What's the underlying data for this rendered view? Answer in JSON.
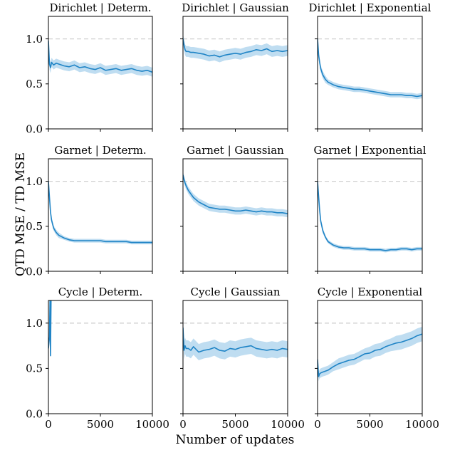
{
  "figure": {
    "ylabel": "QTD MSE / TD MSE",
    "xlabel": "Number of updates"
  },
  "colors": {
    "line": "#1f84c6",
    "band": "#aad2ec",
    "reference": "#cfcfcf"
  },
  "chart_data": {
    "type": "line",
    "layout": "3x3 grid",
    "shared_axes": true,
    "xlim": [
      0,
      10000
    ],
    "ylim": [
      0,
      1.25
    ],
    "x_ticks": [
      0,
      5000,
      10000
    ],
    "y_ticks": [
      0.0,
      0.5,
      1.0
    ],
    "x_tick_labels": [
      "0",
      "5000",
      "10000"
    ],
    "y_tick_labels": [
      "0.0",
      "0.5",
      "1.0"
    ],
    "reference_line": 1.0,
    "reference_style": "dashed grey",
    "grid": false,
    "shaded_band": true,
    "panels": [
      {
        "title": "Dirichlet | Determ.",
        "x": [
          0,
          100,
          200,
          300,
          500,
          750,
          1000,
          1500,
          2000,
          2500,
          3000,
          3500,
          4000,
          4500,
          5000,
          5500,
          6000,
          6500,
          7000,
          7500,
          8000,
          8500,
          9000,
          9500,
          10000
        ],
        "y": [
          0.98,
          0.72,
          0.68,
          0.74,
          0.71,
          0.73,
          0.72,
          0.7,
          0.69,
          0.71,
          0.68,
          0.69,
          0.67,
          0.66,
          0.68,
          0.65,
          0.66,
          0.67,
          0.65,
          0.66,
          0.67,
          0.65,
          0.64,
          0.65,
          0.63
        ],
        "band": [
          0.06,
          0.06,
          0.06,
          0.05,
          0.05,
          0.05,
          0.05,
          0.05,
          0.05,
          0.05,
          0.05,
          0.05,
          0.05,
          0.05,
          0.05,
          0.05,
          0.05,
          0.05,
          0.05,
          0.05,
          0.05,
          0.05,
          0.05,
          0.05,
          0.05
        ]
      },
      {
        "title": "Dirichlet | Gaussian",
        "x": [
          0,
          100,
          200,
          300,
          500,
          750,
          1000,
          1500,
          2000,
          2500,
          3000,
          3500,
          4000,
          4500,
          5000,
          5500,
          6000,
          6500,
          7000,
          7500,
          8000,
          8500,
          9000,
          9500,
          10000
        ],
        "y": [
          1.0,
          0.93,
          0.88,
          0.86,
          0.86,
          0.85,
          0.85,
          0.84,
          0.83,
          0.81,
          0.82,
          0.8,
          0.82,
          0.83,
          0.84,
          0.83,
          0.85,
          0.86,
          0.88,
          0.87,
          0.89,
          0.86,
          0.87,
          0.86,
          0.87
        ],
        "band": [
          0.06,
          0.06,
          0.06,
          0.06,
          0.06,
          0.06,
          0.06,
          0.06,
          0.06,
          0.06,
          0.06,
          0.06,
          0.06,
          0.06,
          0.06,
          0.06,
          0.06,
          0.06,
          0.06,
          0.06,
          0.06,
          0.06,
          0.06,
          0.06,
          0.06
        ]
      },
      {
        "title": "Dirichlet | Exponential",
        "x": [
          0,
          100,
          200,
          300,
          500,
          750,
          1000,
          1500,
          2000,
          2500,
          3000,
          3500,
          4000,
          4500,
          5000,
          5500,
          6000,
          6500,
          7000,
          7500,
          8000,
          8500,
          9000,
          9500,
          10000
        ],
        "y": [
          1.0,
          0.82,
          0.74,
          0.67,
          0.6,
          0.55,
          0.52,
          0.49,
          0.47,
          0.46,
          0.45,
          0.44,
          0.44,
          0.43,
          0.42,
          0.41,
          0.4,
          0.39,
          0.38,
          0.38,
          0.38,
          0.37,
          0.37,
          0.36,
          0.37
        ],
        "band": [
          0.04,
          0.04,
          0.04,
          0.04,
          0.04,
          0.04,
          0.03,
          0.03,
          0.03,
          0.03,
          0.03,
          0.03,
          0.03,
          0.03,
          0.03,
          0.03,
          0.03,
          0.03,
          0.03,
          0.03,
          0.03,
          0.03,
          0.03,
          0.03,
          0.03
        ]
      },
      {
        "title": "Garnet | Determ.",
        "x": [
          0,
          100,
          200,
          300,
          500,
          750,
          1000,
          1500,
          2000,
          2500,
          3000,
          3500,
          4000,
          4500,
          5000,
          5500,
          6000,
          6500,
          7000,
          7500,
          8000,
          8500,
          9000,
          9500,
          10000
        ],
        "y": [
          1.0,
          0.82,
          0.66,
          0.57,
          0.48,
          0.43,
          0.4,
          0.37,
          0.35,
          0.34,
          0.34,
          0.34,
          0.34,
          0.34,
          0.34,
          0.33,
          0.33,
          0.33,
          0.33,
          0.33,
          0.32,
          0.32,
          0.32,
          0.32,
          0.32
        ],
        "band": [
          0.04,
          0.04,
          0.04,
          0.03,
          0.03,
          0.03,
          0.03,
          0.02,
          0.02,
          0.02,
          0.02,
          0.02,
          0.02,
          0.02,
          0.02,
          0.02,
          0.02,
          0.02,
          0.02,
          0.02,
          0.02,
          0.02,
          0.02,
          0.02,
          0.02
        ]
      },
      {
        "title": "Garnet | Gaussian",
        "x": [
          0,
          100,
          200,
          300,
          500,
          750,
          1000,
          1500,
          2000,
          2500,
          3000,
          3500,
          4000,
          4500,
          5000,
          5500,
          6000,
          6500,
          7000,
          7500,
          8000,
          8500,
          9000,
          9500,
          10000
        ],
        "y": [
          1.07,
          1.02,
          0.98,
          0.95,
          0.9,
          0.86,
          0.82,
          0.77,
          0.74,
          0.71,
          0.7,
          0.69,
          0.69,
          0.68,
          0.67,
          0.67,
          0.68,
          0.67,
          0.66,
          0.67,
          0.66,
          0.66,
          0.65,
          0.65,
          0.64
        ],
        "band": [
          0.04,
          0.04,
          0.04,
          0.04,
          0.04,
          0.04,
          0.04,
          0.04,
          0.04,
          0.04,
          0.04,
          0.04,
          0.04,
          0.04,
          0.04,
          0.04,
          0.04,
          0.04,
          0.04,
          0.04,
          0.04,
          0.04,
          0.04,
          0.04,
          0.04
        ]
      },
      {
        "title": "Garnet | Exponential",
        "x": [
          0,
          100,
          200,
          300,
          500,
          750,
          1000,
          1500,
          2000,
          2500,
          3000,
          3500,
          4000,
          4500,
          5000,
          5500,
          6000,
          6500,
          7000,
          7500,
          8000,
          8500,
          9000,
          9500,
          10000
        ],
        "y": [
          1.0,
          0.83,
          0.68,
          0.56,
          0.45,
          0.38,
          0.33,
          0.29,
          0.27,
          0.26,
          0.26,
          0.25,
          0.25,
          0.25,
          0.24,
          0.24,
          0.24,
          0.23,
          0.24,
          0.24,
          0.25,
          0.25,
          0.24,
          0.25,
          0.25
        ],
        "band": [
          0.04,
          0.04,
          0.03,
          0.03,
          0.03,
          0.02,
          0.02,
          0.02,
          0.02,
          0.02,
          0.02,
          0.02,
          0.02,
          0.02,
          0.02,
          0.02,
          0.02,
          0.02,
          0.02,
          0.02,
          0.02,
          0.02,
          0.02,
          0.02,
          0.02
        ]
      },
      {
        "title": "Cycle | Determ.",
        "x": [
          0,
          100,
          150,
          200,
          250,
          300
        ],
        "y": [
          0.72,
          0.85,
          1.25,
          0.64,
          1.25,
          1.25
        ],
        "band": [
          0.0,
          0.0,
          0.0,
          0.0,
          0.0,
          0.0
        ]
      },
      {
        "title": "Cycle | Gaussian",
        "x": [
          0,
          100,
          200,
          300,
          500,
          750,
          1000,
          1500,
          2000,
          2500,
          3000,
          3500,
          4000,
          4500,
          5000,
          5500,
          6000,
          6500,
          7000,
          7500,
          8000,
          8500,
          9000,
          9500,
          10000
        ],
        "y": [
          0.95,
          0.7,
          0.75,
          0.72,
          0.72,
          0.7,
          0.74,
          0.68,
          0.7,
          0.71,
          0.73,
          0.7,
          0.69,
          0.72,
          0.71,
          0.73,
          0.74,
          0.75,
          0.72,
          0.71,
          0.7,
          0.71,
          0.7,
          0.72,
          0.71
        ],
        "band": [
          0.1,
          0.1,
          0.09,
          0.09,
          0.09,
          0.09,
          0.09,
          0.09,
          0.09,
          0.09,
          0.09,
          0.09,
          0.09,
          0.09,
          0.09,
          0.09,
          0.09,
          0.09,
          0.09,
          0.09,
          0.09,
          0.09,
          0.09,
          0.09,
          0.09
        ]
      },
      {
        "title": "Cycle | Exponential",
        "x": [
          0,
          100,
          200,
          300,
          500,
          750,
          1000,
          1500,
          2000,
          2500,
          3000,
          3500,
          4000,
          4500,
          5000,
          5500,
          6000,
          6500,
          7000,
          7500,
          8000,
          8500,
          9000,
          9500,
          10000
        ],
        "y": [
          0.6,
          0.41,
          0.44,
          0.45,
          0.46,
          0.47,
          0.48,
          0.52,
          0.55,
          0.57,
          0.59,
          0.6,
          0.63,
          0.66,
          0.67,
          0.7,
          0.71,
          0.74,
          0.76,
          0.78,
          0.79,
          0.81,
          0.83,
          0.86,
          0.88
        ],
        "band": [
          0.05,
          0.05,
          0.05,
          0.05,
          0.05,
          0.05,
          0.05,
          0.05,
          0.06,
          0.06,
          0.06,
          0.06,
          0.06,
          0.06,
          0.07,
          0.07,
          0.07,
          0.07,
          0.07,
          0.08,
          0.08,
          0.08,
          0.08,
          0.08,
          0.08
        ]
      }
    ]
  }
}
